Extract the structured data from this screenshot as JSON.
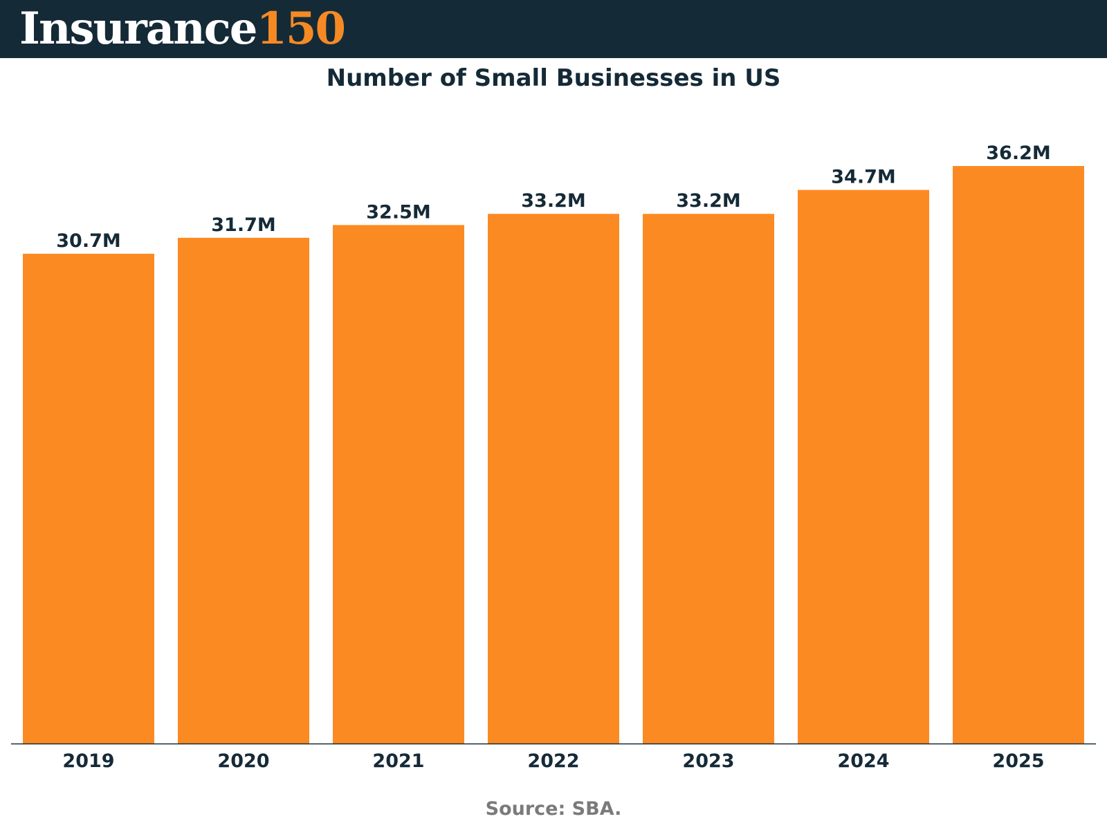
{
  "brand": {
    "name": "Insurance",
    "number": "150"
  },
  "colors": {
    "header_bg": "#152a37",
    "accent": "#f58a24",
    "bar": "#fc8a23",
    "text_dark": "#152a37",
    "source_text": "#7a7a7a"
  },
  "chart_data": {
    "type": "bar",
    "title": "Number of Small Businesses in US",
    "categories": [
      "2019",
      "2020",
      "2021",
      "2022",
      "2023",
      "2024",
      "2025"
    ],
    "values": [
      30.7,
      31.7,
      32.5,
      33.2,
      33.2,
      34.7,
      36.2
    ],
    "value_labels": [
      "30.7M",
      "31.7M",
      "32.5M",
      "33.2M",
      "33.2M",
      "34.7M",
      "36.2M"
    ],
    "xlabel": "",
    "ylabel": "",
    "unit": "M",
    "ylim": [
      0,
      36.2
    ],
    "grid": false,
    "legend": "none"
  },
  "source": "Source: SBA."
}
